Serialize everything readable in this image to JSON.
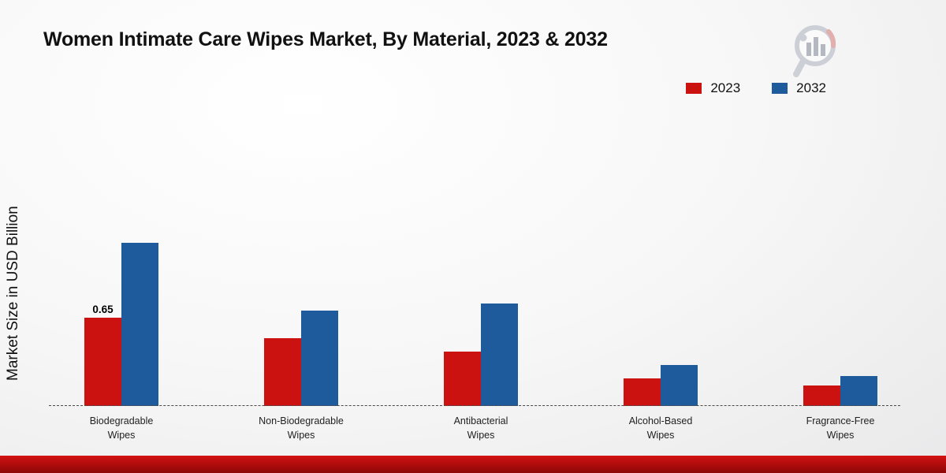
{
  "chart_data": {
    "type": "bar",
    "title": "Women Intimate Care Wipes Market, By Material, 2023 & 2032",
    "ylabel": "Market Size in USD Billion",
    "xlabel": "",
    "categories": [
      "Biodegradable Wipes",
      "Non-Biodegradable Wipes",
      "Antibacterial Wipes",
      "Alcohol-Based Wipes",
      "Fragrance-Free Wipes"
    ],
    "series": [
      {
        "name": "2023",
        "color": "#cc1111",
        "values": [
          0.65,
          0.5,
          0.4,
          0.2,
          0.15
        ]
      },
      {
        "name": "2032",
        "color": "#1e5b9c",
        "values": [
          1.2,
          0.7,
          0.75,
          0.3,
          0.22
        ]
      }
    ],
    "annotations": [
      {
        "category_index": 0,
        "series_index": 0,
        "text": "0.65"
      }
    ],
    "ylim": [
      0,
      1.4
    ],
    "legend_position": "top-right",
    "grid": false,
    "baseline_style": "dashed"
  },
  "branding": {
    "logo_name": "market-research-chart-magnifier-logo",
    "footer_stripe_colors": [
      "#d31212",
      "#8c0606"
    ]
  }
}
